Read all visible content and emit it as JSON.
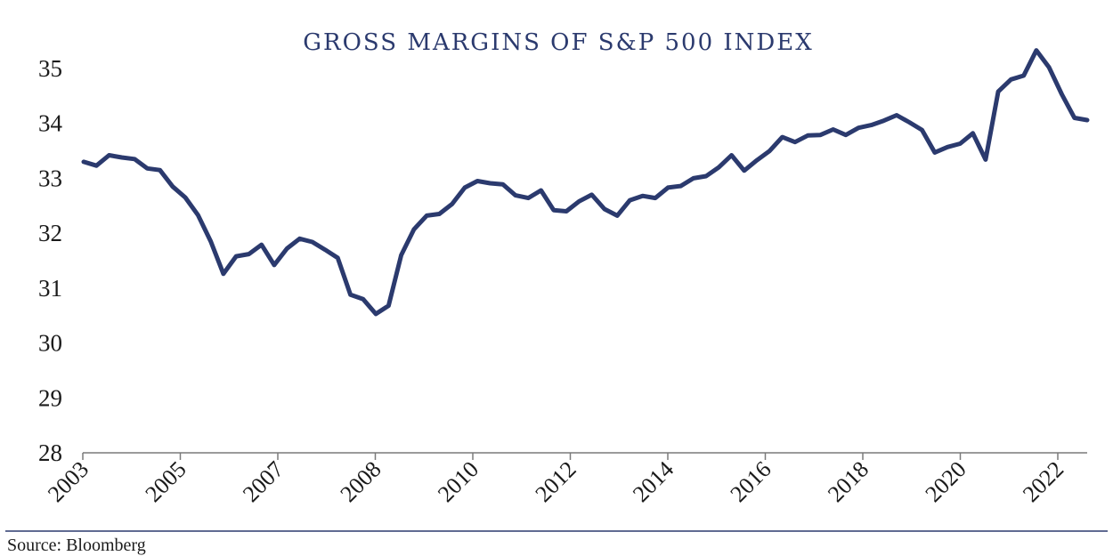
{
  "chart_data": {
    "type": "line",
    "title": "GROSS MARGINS OF S&P 500 INDEX",
    "xlabel": "",
    "ylabel": "",
    "ylim": [
      28,
      35.5
    ],
    "y_ticks": [
      "28",
      "29",
      "30",
      "31",
      "32",
      "33",
      "34",
      "35"
    ],
    "x_tick_labels": [
      "2003",
      "2005",
      "2007",
      "2008",
      "2010",
      "2012",
      "2014",
      "2016",
      "2018",
      "2020",
      "2022"
    ],
    "grid": false,
    "legend": "none",
    "colors": {
      "series": "#2B3A6E",
      "title": "#2B3A6E"
    },
    "series": [
      {
        "values": [
          33.3,
          33.23,
          33.42,
          33.38,
          33.35,
          33.18,
          33.15,
          32.85,
          32.65,
          32.33,
          31.85,
          31.26,
          31.58,
          31.62,
          31.79,
          31.42,
          31.72,
          31.9,
          31.84,
          31.7,
          31.55,
          30.88,
          30.8,
          30.53,
          30.68,
          31.6,
          32.07,
          32.32,
          32.35,
          32.53,
          32.83,
          32.95,
          32.91,
          32.89,
          32.69,
          32.64,
          32.78,
          32.42,
          32.4,
          32.58,
          32.7,
          32.44,
          32.32,
          32.6,
          32.68,
          32.64,
          32.83,
          32.86,
          33.0,
          33.04,
          33.2,
          33.42,
          33.14,
          33.33,
          33.5,
          33.75,
          33.66,
          33.78,
          33.79,
          33.89,
          33.79,
          33.92,
          33.97,
          34.05,
          34.15,
          34.02,
          33.88,
          33.47,
          33.57,
          33.63,
          33.82,
          33.34,
          34.58,
          34.8,
          34.87,
          35.33,
          35.02,
          34.53,
          34.1,
          34.06
        ]
      }
    ],
    "source_note": "Source: Bloomberg"
  }
}
